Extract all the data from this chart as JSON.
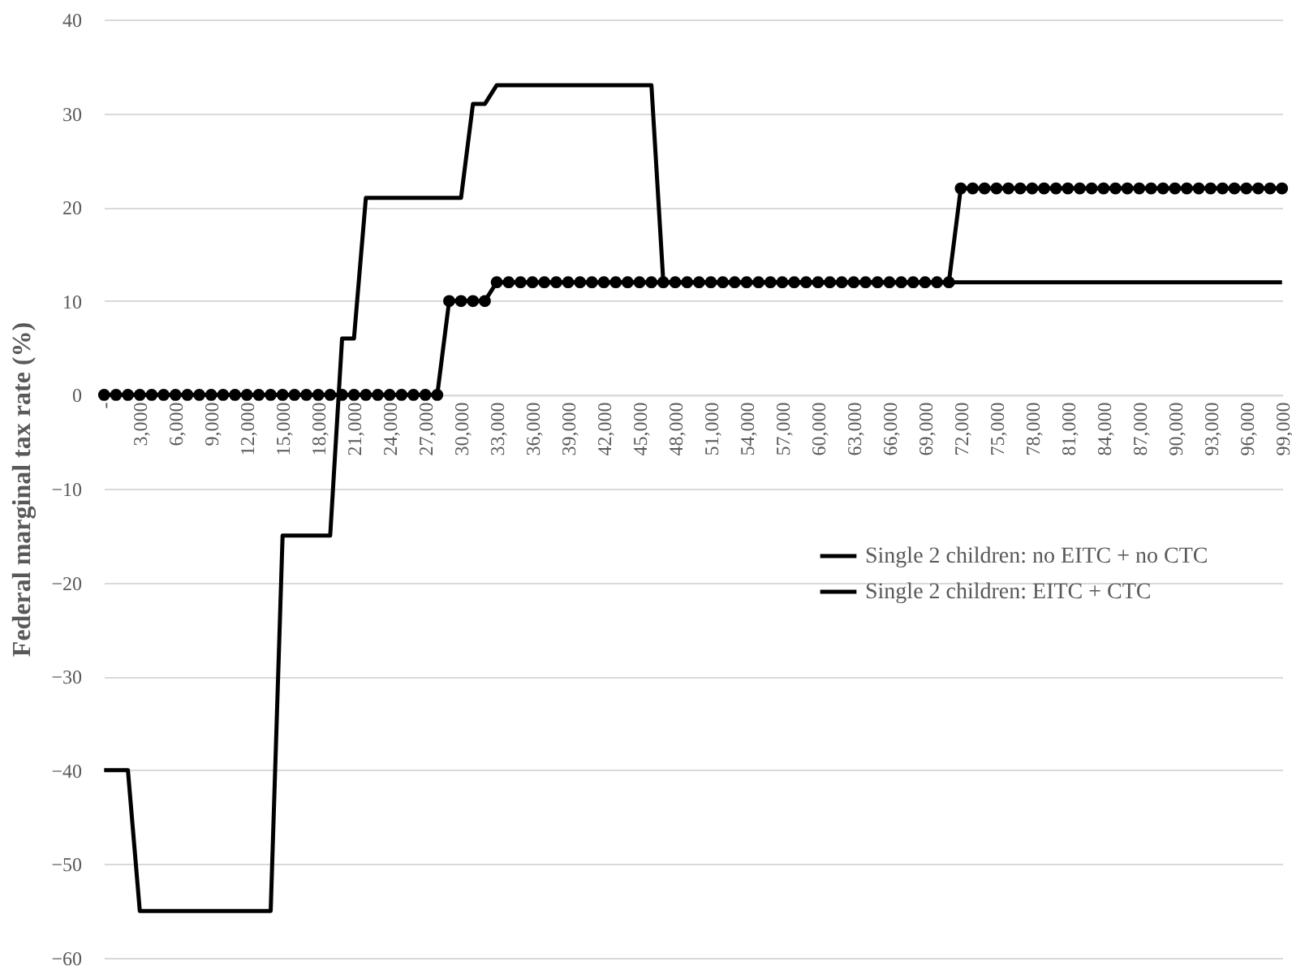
{
  "chart_data": {
    "type": "line",
    "ylabel": "Federal marginal tax rate (%)",
    "categories": [
      "-",
      null,
      null,
      "3,000",
      null,
      null,
      "6,000",
      null,
      null,
      "9,000",
      null,
      null,
      "12,000",
      null,
      null,
      "15,000",
      null,
      null,
      "18,000",
      null,
      null,
      "21,000",
      null,
      null,
      "24,000",
      null,
      null,
      "27,000",
      null,
      null,
      "30,000",
      null,
      null,
      "33,000",
      null,
      null,
      "36,000",
      null,
      null,
      "39,000",
      null,
      null,
      "42,000",
      null,
      null,
      "45,000",
      null,
      null,
      "48,000",
      null,
      null,
      "51,000",
      null,
      null,
      "54,000",
      null,
      null,
      "57,000",
      null,
      null,
      "60,000",
      null,
      null,
      "63,000",
      null,
      null,
      "66,000",
      null,
      null,
      "69,000",
      null,
      null,
      "72,000",
      null,
      null,
      "75,000",
      null,
      null,
      "78,000",
      null,
      null,
      "81,000",
      null,
      null,
      "84,000",
      null,
      null,
      "87,000",
      null,
      null,
      "90,000",
      null,
      null,
      "93,000",
      null,
      null,
      "96,000",
      null,
      null,
      "99,000"
    ],
    "series": [
      {
        "name": "Single 2 children: no EITC + no CTC",
        "color": "#000000",
        "marker": "circle",
        "values": [
          0,
          0,
          0,
          0,
          0,
          0,
          0,
          0,
          0,
          0,
          0,
          0,
          0,
          0,
          0,
          0,
          0,
          0,
          0,
          0,
          0,
          0,
          0,
          0,
          0,
          0,
          0,
          0,
          0,
          10,
          10,
          10,
          10,
          12,
          12,
          12,
          12,
          12,
          12,
          12,
          12,
          12,
          12,
          12,
          12,
          12,
          12,
          12,
          12,
          12,
          12,
          12,
          12,
          12,
          12,
          12,
          12,
          12,
          12,
          12,
          12,
          12,
          12,
          12,
          12,
          12,
          12,
          12,
          12,
          12,
          12,
          12,
          22,
          22,
          22,
          22,
          22,
          22,
          22,
          22,
          22,
          22,
          22,
          22,
          22,
          22,
          22,
          22,
          22,
          22,
          22,
          22,
          22,
          22,
          22,
          22,
          22,
          22,
          22,
          22
        ]
      },
      {
        "name": "Single 2 children: EITC + CTC",
        "color": "#000000",
        "marker": "none",
        "values": [
          -40,
          -40,
          -40,
          -55,
          -55,
          -55,
          -55,
          -55,
          -55,
          -55,
          -55,
          -55,
          -55,
          -55,
          -55,
          -15,
          -15,
          -15,
          -15,
          -15,
          6,
          6,
          21,
          21,
          21,
          21,
          21,
          21,
          21,
          21,
          21,
          31,
          31,
          33,
          33,
          33,
          33,
          33,
          33,
          33,
          33,
          33,
          33,
          33,
          33,
          33,
          33,
          12,
          12,
          12,
          12,
          12,
          12,
          12,
          12,
          12,
          12,
          12,
          12,
          12,
          12,
          12,
          12,
          12,
          12,
          12,
          12,
          12,
          12,
          12,
          12,
          12,
          12,
          12,
          12,
          12,
          12,
          12,
          12,
          12,
          12,
          12,
          12,
          12,
          12,
          12,
          12,
          12,
          12,
          12,
          12,
          12,
          12,
          12,
          12,
          12,
          12,
          12,
          12,
          12
        ]
      }
    ],
    "ylim": [
      -60,
      40
    ],
    "yticks": [
      -60,
      -50,
      -40,
      -30,
      -20,
      -10,
      0,
      10,
      20,
      30,
      40
    ],
    "grid": "y",
    "legend": "right",
    "line_style": "solid"
  }
}
